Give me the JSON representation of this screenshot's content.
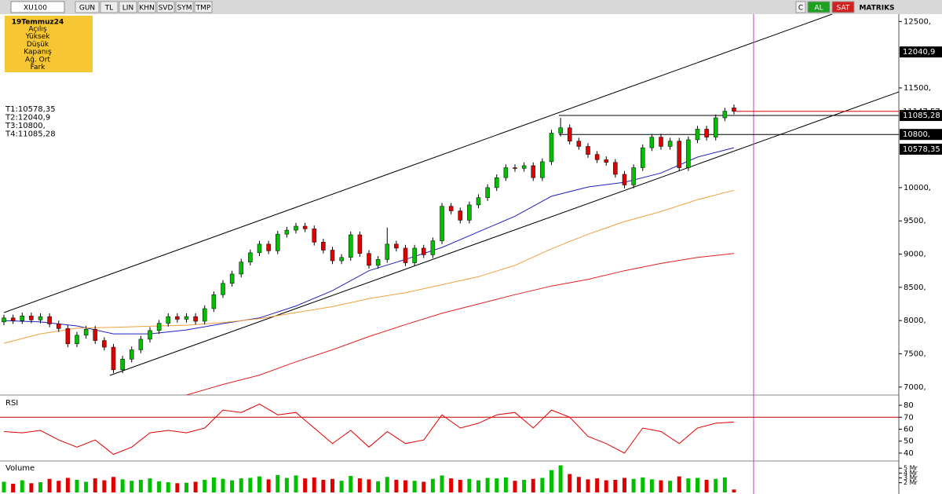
{
  "toolbar": {
    "symbol": "XU100",
    "buttons": [
      "GUN",
      "TL",
      "LIN",
      "KHN",
      "SVD",
      "SYM",
      "TMP"
    ],
    "right_buttons": [
      "C",
      "AL",
      "SAT"
    ],
    "brand": "MATRIKS"
  },
  "info_box": {
    "date": "19Temmuz24",
    "fields": [
      "Açılış",
      "Yüksek",
      "Düşük",
      "Kapanış",
      "Ağ. Ort",
      "Fark"
    ]
  },
  "chart_data": [
    {
      "type": "candlestick",
      "open": [
        7980,
        8040,
        8000,
        8070,
        8010,
        8060,
        7950,
        7880,
        7650,
        7780,
        7870,
        7700,
        7600,
        7260,
        7420,
        7560,
        7720,
        7850,
        7960,
        8060,
        8020,
        8060,
        7990,
        8180,
        8390,
        8560,
        8700,
        8880,
        9020,
        9150,
        9050,
        9300,
        9360,
        9420,
        9380,
        9180,
        9060,
        8900,
        8950,
        9290,
        9010,
        8830,
        8920,
        9150,
        9090,
        8870,
        9090,
        8990,
        9200,
        9720,
        9650,
        9510,
        9740,
        9850,
        10000,
        10150,
        10300,
        10290,
        10330,
        10150,
        10390,
        10820,
        10900,
        10700,
        10620,
        10500,
        10420,
        10380,
        10200,
        10040,
        10300,
        10600,
        10760,
        10620,
        10700,
        10300,
        10720,
        10880,
        10760,
        11050,
        11200
      ],
      "high": [
        8090,
        8090,
        8120,
        8120,
        8110,
        8110,
        8000,
        7930,
        7830,
        7920,
        7920,
        7750,
        7650,
        7470,
        7610,
        7770,
        7900,
        8010,
        8110,
        8110,
        8110,
        8110,
        8230,
        8440,
        8610,
        8750,
        8930,
        9070,
        9200,
        9200,
        9350,
        9410,
        9470,
        9470,
        9430,
        9230,
        9110,
        9000,
        9340,
        9340,
        9060,
        8970,
        9400,
        9200,
        9140,
        9140,
        9140,
        9250,
        9770,
        9770,
        9700,
        9790,
        9900,
        10050,
        10200,
        10350,
        10350,
        10380,
        10380,
        10440,
        10870,
        11050,
        10950,
        10750,
        10670,
        10550,
        10470,
        10430,
        10250,
        10350,
        10650,
        10810,
        10810,
        10750,
        10750,
        10770,
        10930,
        10930,
        11100,
        11200,
        11250
      ],
      "low": [
        7930,
        7950,
        7950,
        7960,
        7960,
        7900,
        7830,
        7600,
        7600,
        7730,
        7650,
        7550,
        7210,
        7210,
        7370,
        7510,
        7670,
        7800,
        7910,
        7970,
        7970,
        7940,
        7940,
        8130,
        8340,
        8510,
        8650,
        8830,
        8970,
        9000,
        9000,
        9250,
        9310,
        9330,
        9130,
        9010,
        8850,
        8850,
        8900,
        8960,
        8780,
        8780,
        8870,
        9040,
        8820,
        8820,
        8940,
        8940,
        9150,
        9600,
        9460,
        9460,
        9690,
        9800,
        9950,
        10100,
        10240,
        10240,
        10100,
        10100,
        10340,
        10770,
        10650,
        10570,
        10450,
        10370,
        10330,
        10150,
        9990,
        9990,
        10250,
        10550,
        10570,
        10570,
        10250,
        10250,
        10670,
        10710,
        10710,
        11000,
        11100
      ],
      "close": [
        8040,
        8000,
        8070,
        8010,
        8060,
        7950,
        7880,
        7650,
        7780,
        7870,
        7700,
        7600,
        7260,
        7420,
        7560,
        7720,
        7850,
        7960,
        8060,
        8020,
        8060,
        7990,
        8180,
        8390,
        8560,
        8700,
        8880,
        9020,
        9150,
        9050,
        9300,
        9360,
        9420,
        9380,
        9180,
        9060,
        8900,
        8950,
        9290,
        9010,
        8830,
        8920,
        9150,
        9090,
        8870,
        9090,
        8990,
        9200,
        9720,
        9650,
        9510,
        9740,
        9850,
        10000,
        10150,
        10300,
        10290,
        10330,
        10150,
        10390,
        10820,
        10900,
        10700,
        10620,
        10500,
        10420,
        10380,
        10200,
        10040,
        10300,
        10600,
        10760,
        10620,
        10700,
        10300,
        10720,
        10880,
        10760,
        11050,
        11150,
        11147.57
      ],
      "colors": {
        "up": "#00c000",
        "down": "#e00000"
      },
      "series": [
        {
          "color": "#2020c0",
          "values": [
            8000,
            7980,
            7920,
            7800,
            7800,
            7860,
            7955,
            8040,
            8220,
            8450,
            8750,
            8920,
            9100,
            9335,
            9570,
            9870,
            10010,
            10080,
            10220,
            10460,
            10600
          ]
        },
        {
          "color": "#f0a040",
          "values": [
            7660,
            7800,
            7885,
            7900,
            7915,
            7930,
            7970,
            8030,
            8120,
            8210,
            8330,
            8420,
            8540,
            8660,
            8830,
            9080,
            9300,
            9490,
            9640,
            9820,
            9960
          ]
        },
        {
          "color": "#e02020",
          "values": [
            null,
            null,
            null,
            null,
            null,
            6880,
            7040,
            7180,
            7380,
            7560,
            7760,
            7940,
            8110,
            8250,
            8390,
            8520,
            8620,
            8750,
            8860,
            8950,
            9010
          ]
        }
      ],
      "ylim": [
        6880,
        12610
      ],
      "yticks": [
        {
          "value": 12500,
          "label": "12500,"
        },
        {
          "value": 11500,
          "label": "11500,"
        },
        {
          "value": 10000,
          "label": "10000,"
        },
        {
          "value": 9500,
          "label": "9500,"
        },
        {
          "value": 9000,
          "label": "9000,"
        },
        {
          "value": 8500,
          "label": "8500,"
        },
        {
          "value": 8000,
          "label": "8000,"
        },
        {
          "value": 7500,
          "label": "7500,"
        },
        {
          "value": 7000,
          "label": "7000,"
        }
      ],
      "price_tags": [
        {
          "value": 12040.9,
          "label": "12040,9",
          "box": true
        },
        {
          "value": 11147.57,
          "label": "11147,57",
          "box": false,
          "line_color": "#e00000"
        },
        {
          "value": 11085.28,
          "label": "11085,28",
          "box": true,
          "line_color": "#000000"
        },
        {
          "value": 10800,
          "label": "10800,",
          "box": true,
          "line_color": "#000000"
        },
        {
          "value": 10578.35,
          "label": "10578,35",
          "box": true
        }
      ],
      "annotations": [
        "T1:10578,35",
        "T2:12040,9",
        "T3:10800,",
        "T4:11085,28"
      ]
    },
    {
      "type": "line",
      "title": "RSI",
      "color": "#e00000",
      "values": [
        58,
        57,
        59,
        51,
        45,
        51,
        39,
        45,
        57,
        59,
        57,
        61,
        76,
        74,
        81,
        72,
        74,
        61,
        48,
        59,
        45,
        58,
        48,
        51,
        72,
        61,
        65,
        72,
        74,
        61,
        76,
        70,
        54,
        48,
        40,
        61,
        58,
        48,
        61,
        65,
        66
      ],
      "ylim": [
        33.4,
        86.6
      ],
      "yticks": [
        80,
        70,
        60,
        50,
        40
      ],
      "reference_line": 70
    },
    {
      "type": "bar",
      "title": "Volume",
      "values": [
        2.2,
        1.8,
        2.5,
        1.9,
        2.1,
        2.8,
        2.4,
        3.0,
        2.6,
        2.2,
        2.9,
        2.5,
        3.2,
        2.7,
        2.4,
        2.6,
        2.9,
        2.3,
        2.1,
        1.9,
        2.0,
        2.2,
        2.6,
        3.1,
        2.8,
        2.5,
        2.9,
        3.0,
        3.3,
        2.7,
        3.6,
        3.0,
        3.5,
        2.9,
        3.1,
        2.6,
        2.8,
        2.4,
        3.4,
        2.9,
        2.7,
        2.3,
        3.2,
        2.6,
        2.5,
        2.4,
        2.2,
        2.8,
        3.5,
        2.9,
        2.6,
        2.8,
        2.5,
        3.0,
        2.9,
        3.1,
        2.4,
        2.6,
        2.8,
        3.0,
        4.6,
        5.6,
        3.8,
        3.2,
        2.7,
        2.9,
        2.5,
        2.6,
        3.0,
        2.8,
        3.1,
        2.7,
        2.5,
        2.4,
        3.3,
        2.9,
        3.0,
        2.6,
        2.8,
        3.1,
        0.6
      ],
      "ylim": [
        0,
        6
      ],
      "yticks": [
        {
          "value": 5,
          "label": "5 Mr"
        },
        {
          "value": 4,
          "label": "4 Mr"
        },
        {
          "value": 3,
          "label": "3 Mr"
        },
        {
          "value": 2,
          "label": "2 Mr"
        }
      ]
    }
  ]
}
